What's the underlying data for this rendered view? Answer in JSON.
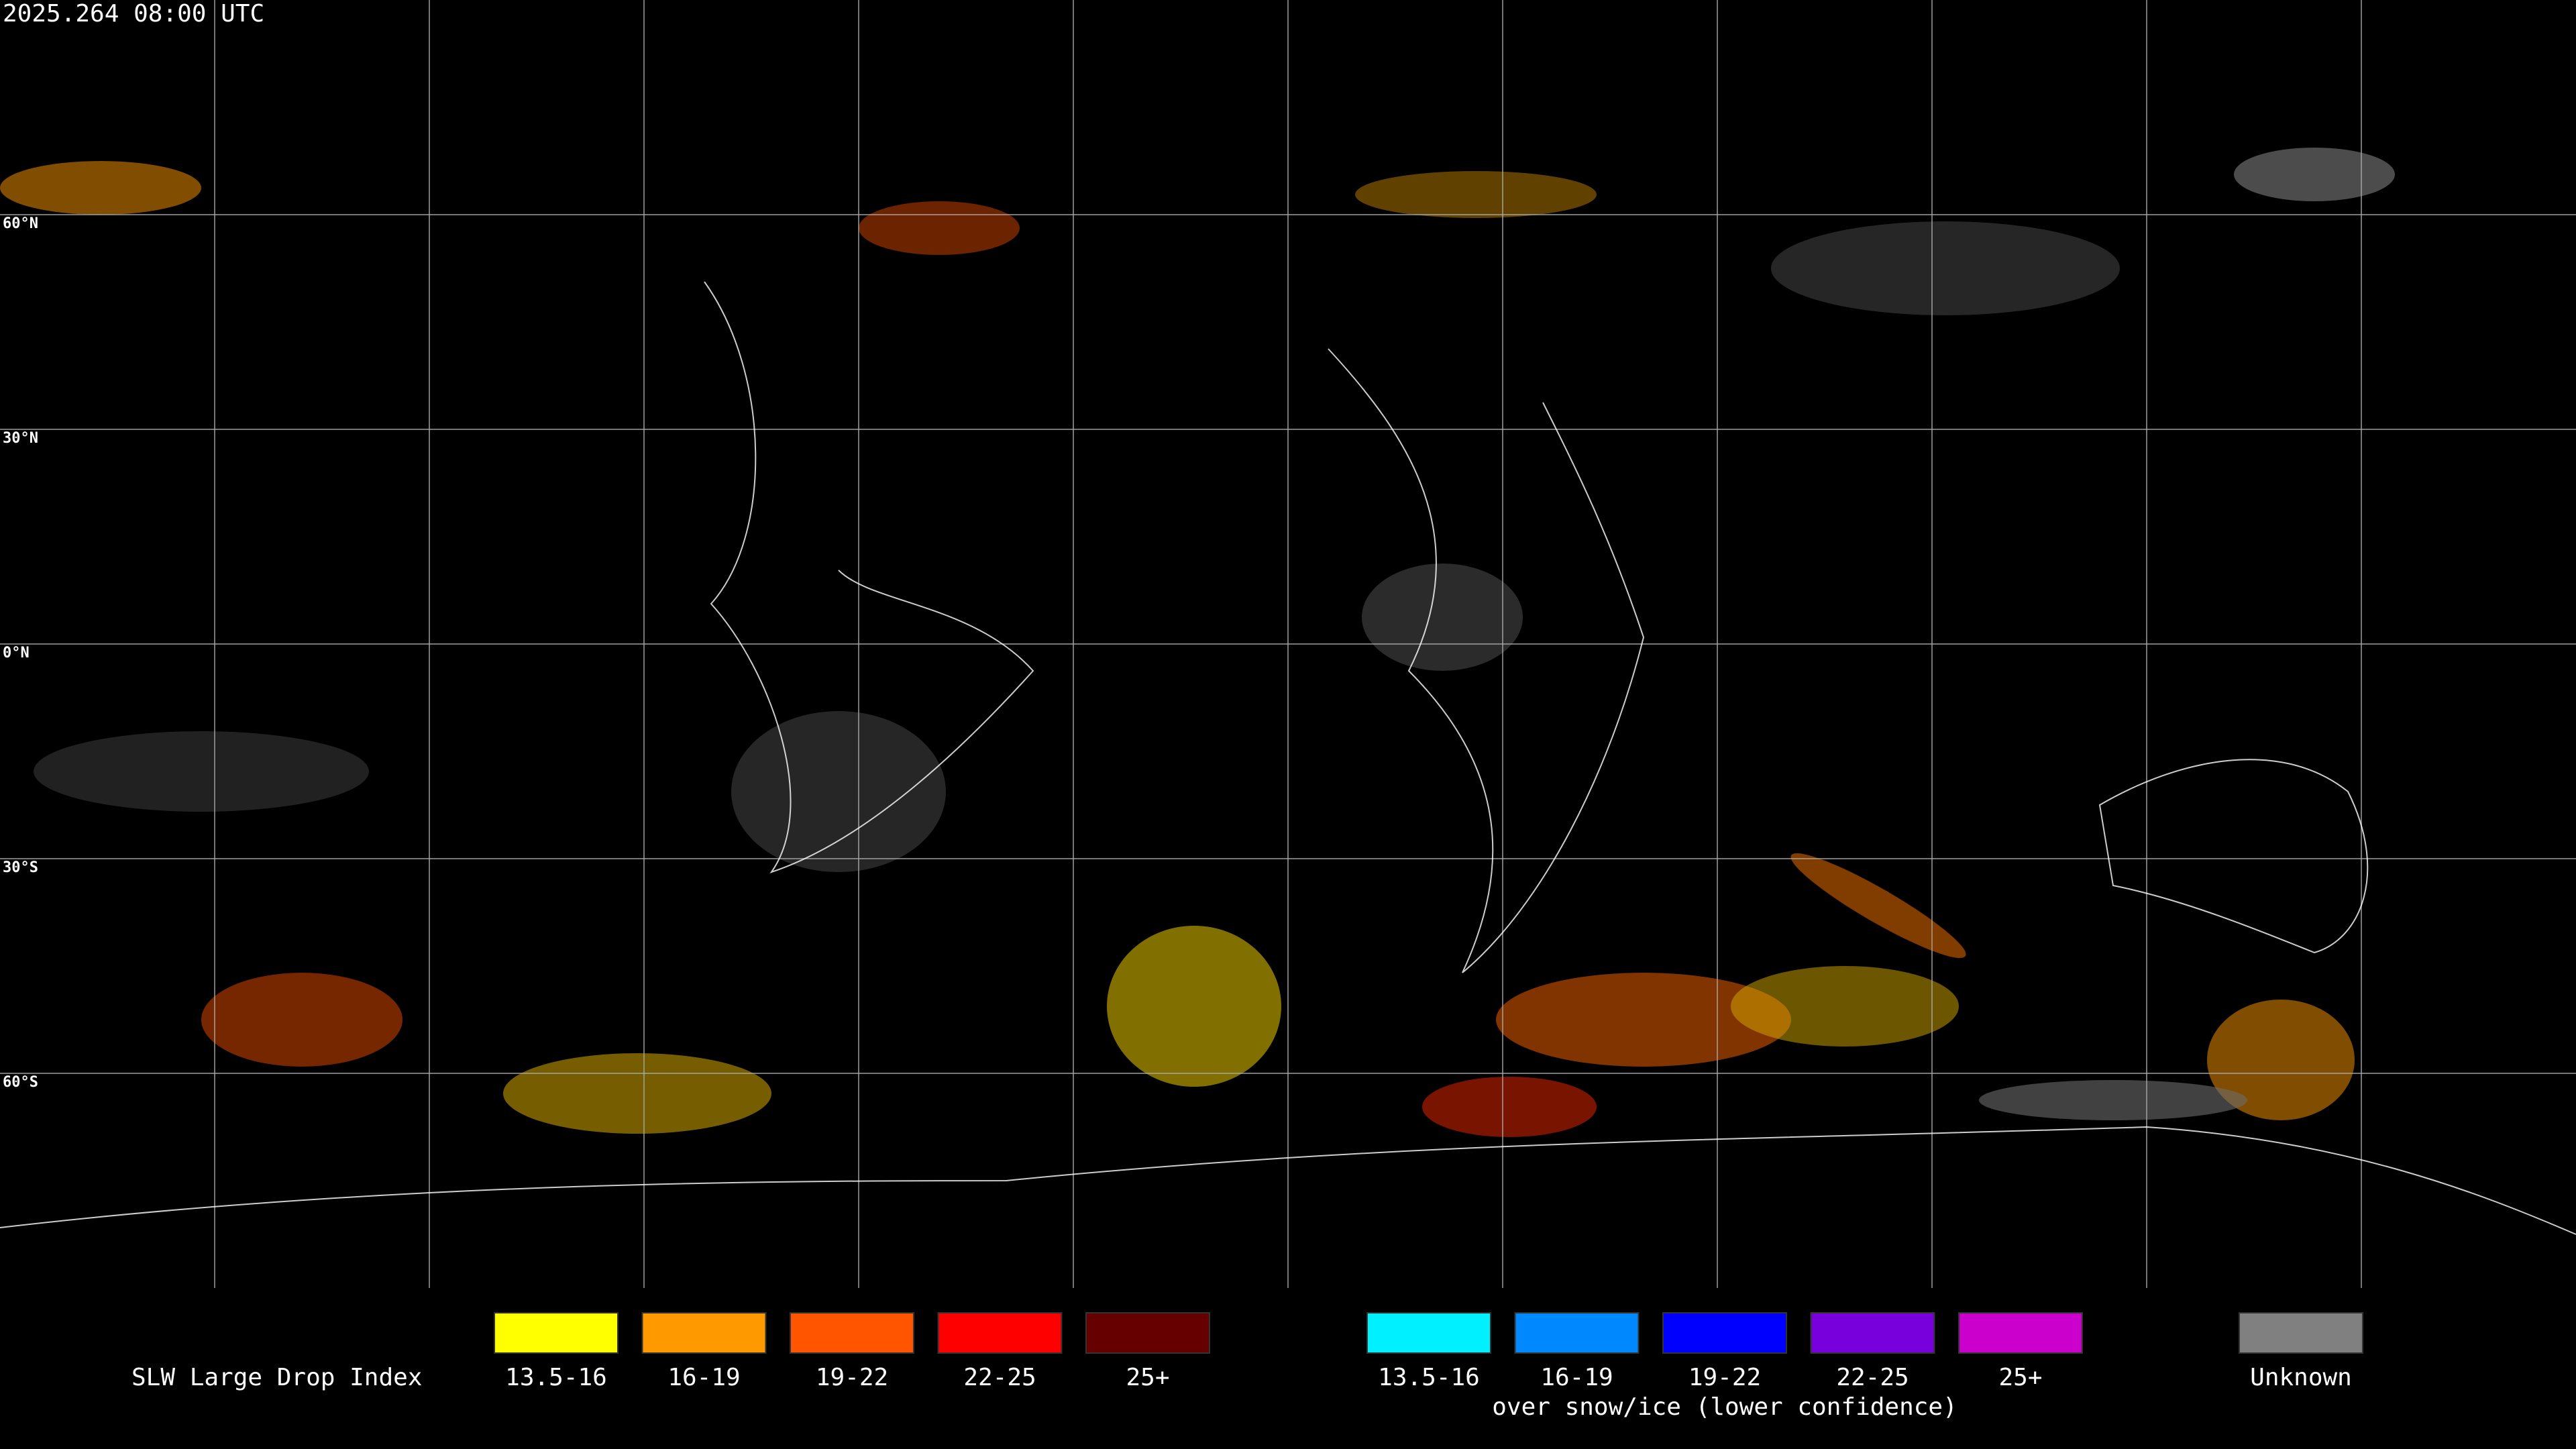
{
  "header": {
    "timestamp": "2025.264 08:00 UTC"
  },
  "map": {
    "latitude_labels": [
      "60°N",
      "30°N",
      "0°N",
      "30°S",
      "60°S"
    ]
  },
  "legend": {
    "title": "SLW Large Drop Index",
    "groups": [
      {
        "items": [
          {
            "label": "13.5-16",
            "color": "#ffff00"
          },
          {
            "label": "16-19",
            "color": "#ff9900"
          },
          {
            "label": "19-22",
            "color": "#ff5500"
          },
          {
            "label": "22-25",
            "color": "#ff0000"
          },
          {
            "label": "25+",
            "color": "#660000"
          }
        ]
      },
      {
        "items": [
          {
            "label": "13.5-16",
            "color": "#00f0ff"
          },
          {
            "label": "16-19",
            "color": "#0088ff"
          },
          {
            "label": "19-22",
            "color": "#0000ff"
          },
          {
            "label": "22-25",
            "color": "#7700dd"
          },
          {
            "label": "25+",
            "color": "#cc00cc"
          }
        ],
        "caption": "over snow/ice (lower confidence)"
      },
      {
        "items": [
          {
            "label": "Unknown",
            "color": "#808080"
          }
        ]
      }
    ]
  }
}
